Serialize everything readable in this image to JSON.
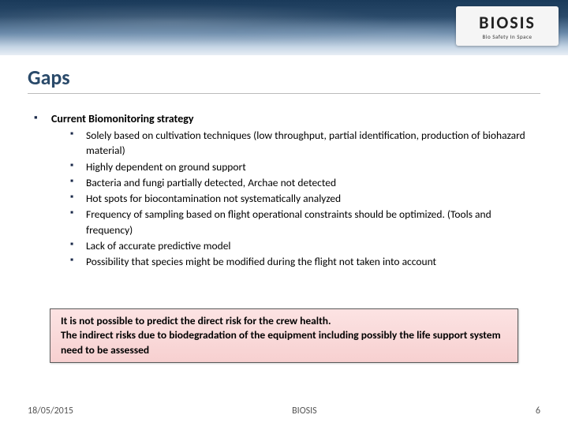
{
  "banner": {
    "logo_text": "BIOSIS",
    "logo_sub": "Bio Safety In Space"
  },
  "title": "Gaps",
  "main_bullet": {
    "text": "Current Biomonitoring strategy",
    "sub_bullets": [
      "Solely based on cultivation techniques (low throughput, partial identification, production of biohazard material)",
      "Highly dependent on ground support",
      "Bacteria and fungi partially detected, Archae not detected",
      "Hot spots for biocontamination not systematically analyzed",
      "Frequency of sampling based on flight operational constraints should be optimized. (Tools and frequency)",
      "Lack of accurate predictive model",
      "Possibility that species might be modified during the flight not taken into account"
    ]
  },
  "callout": {
    "lines": [
      "It is not possible to predict the direct risk for the crew health.",
      "The indirect risks due to biodegradation of the equipment including possibly the life support system need to be assessed"
    ],
    "background_gradient_top": "#fce3e3",
    "background_gradient_bottom": "#f7d0d0",
    "border_color": "#5a5a5a"
  },
  "footer": {
    "date": "18/05/2015",
    "center": "BIOSIS",
    "page": "6"
  },
  "colors": {
    "title_color": "#2a4a6a",
    "bullet_color": "#1a2a4a",
    "text_color": "#000000",
    "footer_color": "#555555"
  },
  "typography": {
    "title_fontsize": 26,
    "main_bullet_fontsize": 14,
    "sub_bullet_fontsize": 13.5,
    "callout_fontsize": 13.5,
    "footer_fontsize": 12
  }
}
